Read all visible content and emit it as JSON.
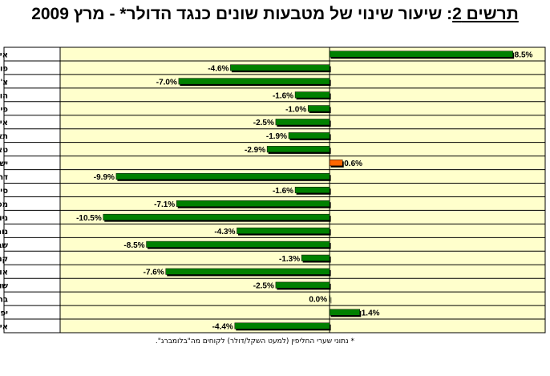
{
  "title": {
    "label": "תרשים 2",
    "text": ": שיעור שינוי של מטבעות שונים כנגד הדולר* - מרץ 2009"
  },
  "footnote": "* נתוני שערי החליפין (למעט השקל/דולר) לקוחים מה\"בלומברג\".",
  "colors": {
    "background": "#ffffcc",
    "bar": "#008000",
    "bar_highlight": "#ff6600",
    "shadow": "#000000",
    "border": "#000000"
  },
  "chart_data": {
    "type": "bar",
    "orientation": "horizontal",
    "categories": [
      "איסלנד",
      "פולין",
      "צ'כיה",
      "הונגריה",
      "פיליפינים",
      "אינדונזיה",
      "תאילנד",
      "טאיוואן",
      "ישראל",
      "דר' קוריאה",
      "סינגפור",
      "מכסיקו",
      "ניו זילנד",
      "נורבגיה",
      "שבדיה",
      "קנדה",
      "אוסטרליה",
      "שוויץ",
      "בריטניה",
      "יפן",
      "אירו"
    ],
    "values": [
      8.5,
      -4.6,
      -7.0,
      -1.6,
      -1.0,
      -2.5,
      -1.9,
      -2.9,
      0.6,
      -9.9,
      -1.6,
      -7.1,
      -10.5,
      -4.3,
      -8.5,
      -1.3,
      -7.6,
      -2.5,
      0.0,
      1.4,
      -4.4
    ],
    "value_labels": [
      "8.5%",
      "-4.6%",
      "-7.0%",
      "-1.6%",
      "-1.0%",
      "-2.5%",
      "-1.9%",
      "-2.9%",
      "0.6%",
      "-9.9%",
      "-1.6%",
      "-7.1%",
      "-10.5%",
      "-4.3%",
      "-8.5%",
      "-1.3%",
      "-7.6%",
      "-2.5%",
      "0.0%",
      "1.4%",
      "-4.4%"
    ],
    "highlight_category": "ישראל",
    "xlim": [
      -12.5,
      10.0
    ],
    "grid": "horizontal row lines",
    "legend": "none",
    "xlabel": "",
    "ylabel": ""
  }
}
